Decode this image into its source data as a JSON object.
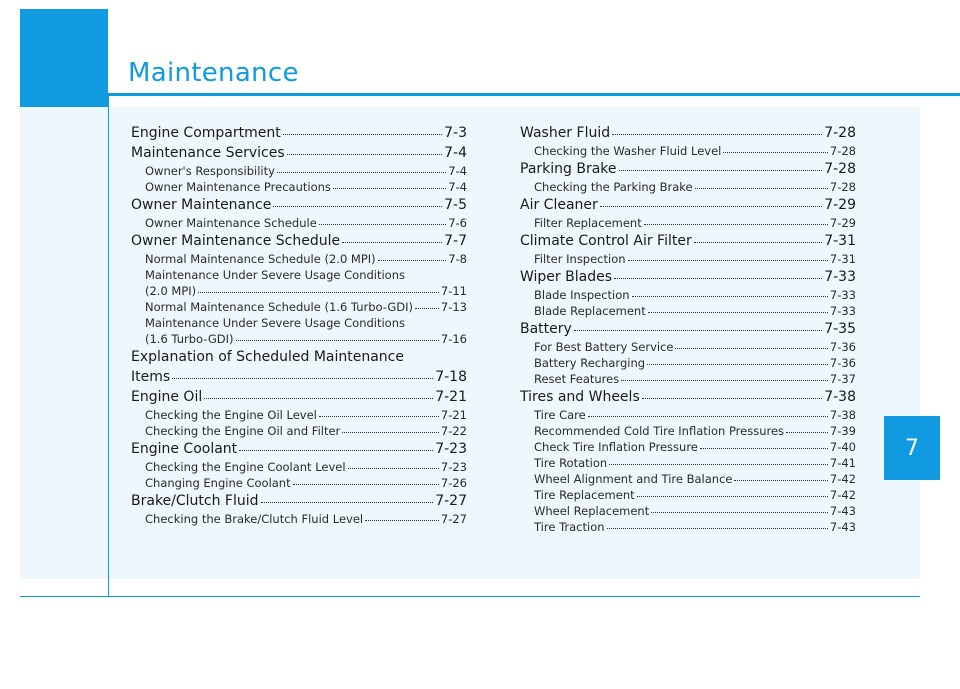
{
  "header": {
    "title": "Maintenance"
  },
  "chapter_tab": "7",
  "toc_left": {
    "engine_compartment": {
      "label": "Engine Compartment",
      "page": "7-3"
    },
    "maintenance_services": {
      "label": "Maintenance Services",
      "page": "7-4"
    },
    "owners_responsibility": {
      "label": "Owner's Responsibility",
      "page": "7-4"
    },
    "owner_maintenance_precautions": {
      "label": "Owner Maintenance Precautions",
      "page": "7-4"
    },
    "owner_maintenance": {
      "label": "Owner Maintenance",
      "page": "7-5"
    },
    "owner_maintenance_schedule_sub": {
      "label": "Owner Maintenance Schedule",
      "page": "7-6"
    },
    "owner_maintenance_schedule": {
      "label": "Owner Maintenance Schedule",
      "page": "7-7"
    },
    "normal_schedule_20": {
      "label": "Normal Maintenance Schedule (2.0 MPI)",
      "page": "7-8"
    },
    "severe_20_line1": "Maintenance Under Severe Usage Conditions",
    "severe_20_line2": {
      "label": "(2.0 MPI)",
      "page": "7-11"
    },
    "normal_schedule_16": {
      "label": "Normal Maintenance Schedule (1.6 Turbo-GDI)",
      "page": "7-13"
    },
    "severe_16_line1": "Maintenance Under Severe Usage Conditions",
    "severe_16_line2": {
      "label": "(1.6 Turbo-GDI)",
      "page": "7-16"
    },
    "explanation_line1": "Explanation of Scheduled Maintenance",
    "explanation_line2": {
      "label": "Items",
      "page": "7-18"
    },
    "engine_oil": {
      "label": "Engine Oil",
      "page": "7-21"
    },
    "checking_engine_oil_level": {
      "label": "Checking the Engine Oil Level",
      "page": "7-21"
    },
    "checking_engine_oil_filter": {
      "label": "Checking the Engine Oil and Filter",
      "page": "7-22"
    },
    "engine_coolant": {
      "label": "Engine Coolant",
      "page": "7-23"
    },
    "checking_coolant_level": {
      "label": "Checking the Engine Coolant Level",
      "page": "7-23"
    },
    "changing_coolant": {
      "label": "Changing Engine Coolant",
      "page": "7-26"
    },
    "brake_clutch_fluid": {
      "label": "Brake/Clutch Fluid",
      "page": "7-27"
    },
    "checking_brake_fluid": {
      "label": "Checking the Brake/Clutch Fluid Level",
      "page": "7-27"
    }
  },
  "toc_right": {
    "washer_fluid": {
      "label": "Washer Fluid",
      "page": "7-28"
    },
    "checking_washer_fluid": {
      "label": "Checking the Washer Fluid Level",
      "page": "7-28"
    },
    "parking_brake": {
      "label": "Parking Brake",
      "page": "7-28"
    },
    "checking_parking_brake": {
      "label": "Checking the Parking Brake",
      "page": "7-28"
    },
    "air_cleaner": {
      "label": "Air Cleaner",
      "page": "7-29"
    },
    "filter_replacement": {
      "label": "Filter Replacement",
      "page": "7-29"
    },
    "climate_filter": {
      "label": "Climate Control Air Filter",
      "page": "7-31"
    },
    "filter_inspection": {
      "label": "Filter Inspection",
      "page": "7-31"
    },
    "wiper_blades": {
      "label": "Wiper Blades",
      "page": "7-33"
    },
    "blade_inspection": {
      "label": "Blade Inspection",
      "page": "7-33"
    },
    "blade_replacement": {
      "label": "Blade Replacement",
      "page": "7-33"
    },
    "battery": {
      "label": "Battery",
      "page": "7-35"
    },
    "best_battery_service": {
      "label": "For Best Battery Service",
      "page": "7-36"
    },
    "battery_recharging": {
      "label": "Battery Recharging",
      "page": "7-36"
    },
    "reset_features": {
      "label": "Reset Features",
      "page": "7-37"
    },
    "tires_wheels": {
      "label": "Tires and Wheels",
      "page": "7-38"
    },
    "tire_care": {
      "label": "Tire Care",
      "page": "7-38"
    },
    "cold_tire_pressures": {
      "label": "Recommended Cold Tire Inflation Pressures",
      "page": "7-39"
    },
    "check_tire_pressure": {
      "label": "Check Tire Inflation Pressure",
      "page": "7-40"
    },
    "tire_rotation": {
      "label": "Tire Rotation",
      "page": "7-41"
    },
    "wheel_alignment": {
      "label": "Wheel Alignment and Tire Balance",
      "page": "7-42"
    },
    "tire_replacement": {
      "label": "Tire Replacement",
      "page": "7-42"
    },
    "wheel_replacement": {
      "label": "Wheel Replacement",
      "page": "7-43"
    },
    "tire_traction": {
      "label": "Tire Traction",
      "page": "7-43"
    }
  }
}
